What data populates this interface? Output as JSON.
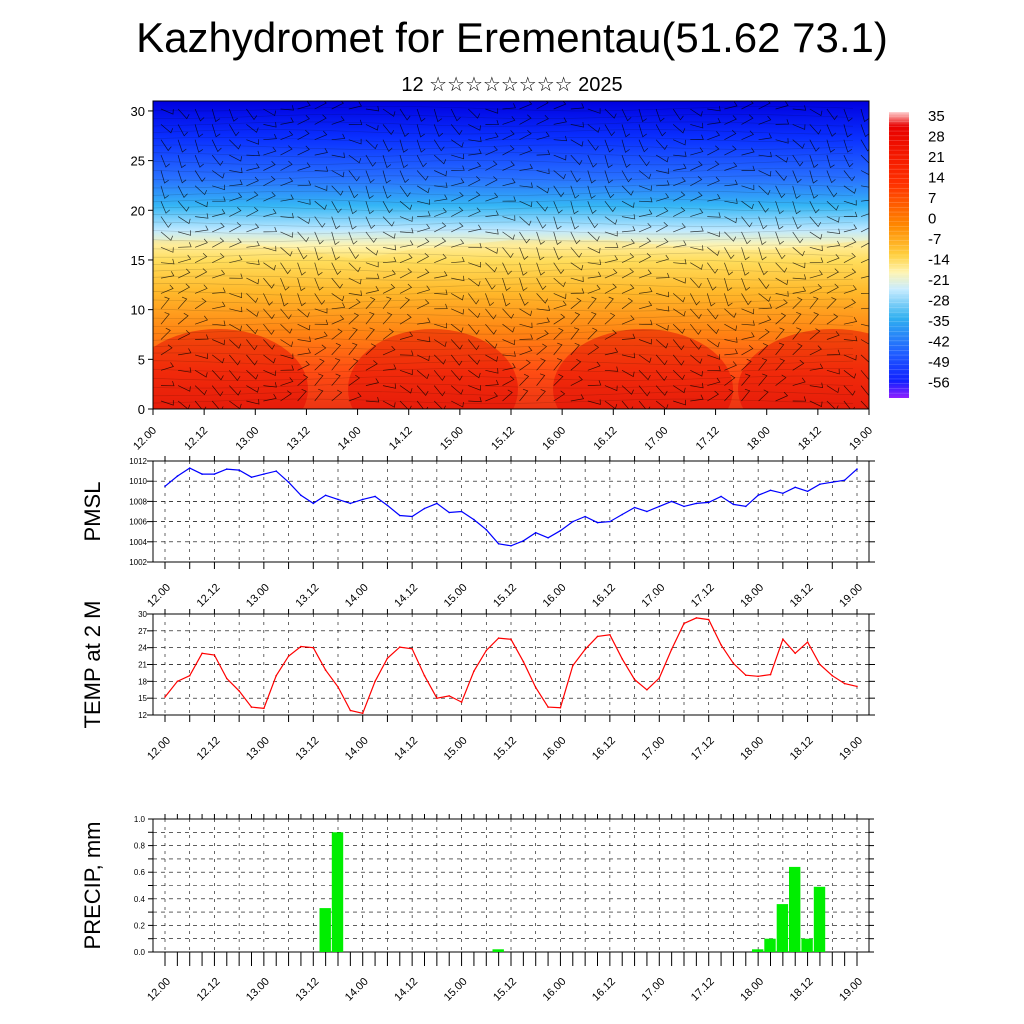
{
  "title": "Kazhydromet for Erementau(51.62 73.1)",
  "subtitle": "12 ☆☆☆☆☆☆☆☆ 2025",
  "colors": {
    "pmsl": "#0000ff",
    "temp": "#ff0000",
    "precip": "#00ee00"
  },
  "chart_data": [
    {
      "type": "heatmap",
      "name": "temperature cross-section with wind barbs",
      "xlabel": "",
      "ylabel": "",
      "ylim": [
        0,
        31
      ],
      "yticks": [
        "0",
        "5",
        "10",
        "15",
        "20",
        "25",
        "30"
      ],
      "xticks": [
        "12.00",
        "12.12",
        "13.00",
        "13.12",
        "14.00",
        "14.12",
        "15.00",
        "15.12",
        "16.00",
        "16.12",
        "17.00",
        "17.12",
        "18.00",
        "18.12",
        "19.00"
      ],
      "colorbar_labels": [
        "35",
        "28",
        "21",
        "14",
        "7",
        "0",
        "-7",
        "-14",
        "-21",
        "-28",
        "-35",
        "-42",
        "-49",
        "-56"
      ],
      "colorbar_range": [
        -60,
        40
      ],
      "warm_layer_top_level": [
        17,
        17,
        16.5,
        16,
        15,
        16,
        16.5,
        17,
        17,
        17,
        16.5,
        16,
        16,
        16.5,
        17
      ]
    },
    {
      "type": "line",
      "ylabel": "PMSL",
      "ylim": [
        1002,
        1012
      ],
      "yticks": [
        "1002",
        "1004",
        "1006",
        "1008",
        "1010",
        "1012"
      ],
      "xticks": [
        "12.00",
        "12.12",
        "13.00",
        "13.12",
        "14.00",
        "14.12",
        "15.00",
        "15.12",
        "16.00",
        "16.12",
        "17.00",
        "17.12",
        "18.00",
        "18.12",
        "19.00"
      ],
      "x_hours": [
        0,
        3,
        6,
        9,
        12,
        15,
        18,
        21,
        24,
        27,
        30,
        33,
        36,
        39,
        42,
        45,
        48,
        51,
        54,
        57,
        60,
        63,
        66,
        69,
        72,
        75,
        78,
        81,
        84,
        87,
        90,
        93,
        96,
        99,
        102,
        105,
        108,
        111,
        114,
        117,
        120,
        123,
        126,
        129,
        132,
        135,
        138,
        141,
        144,
        147,
        150,
        153,
        156,
        159,
        162,
        165,
        168
      ],
      "values": [
        1009.5,
        1010.5,
        1011.3,
        1010.7,
        1010.7,
        1011.2,
        1011.1,
        1010.4,
        1010.7,
        1011.0,
        1009.9,
        1008.6,
        1007.8,
        1008.6,
        1008.2,
        1007.8,
        1008.2,
        1008.5,
        1007.6,
        1006.6,
        1006.5,
        1007.3,
        1007.8,
        1006.9,
        1007.0,
        1006.2,
        1005.2,
        1003.8,
        1003.6,
        1004.1,
        1004.9,
        1004.4,
        1005.1,
        1006.0,
        1006.5,
        1005.9,
        1006.0,
        1006.7,
        1007.4,
        1007.0,
        1007.5,
        1008.0,
        1007.5,
        1007.8,
        1007.9,
        1008.5,
        1007.7,
        1007.5,
        1008.6,
        1009.1,
        1008.8,
        1009.4,
        1009.0,
        1009.7,
        1009.9,
        1010.1,
        1011.2
      ]
    },
    {
      "type": "line",
      "ylabel": "TEMP at 2 M",
      "ylim": [
        12,
        30
      ],
      "yticks": [
        "12",
        "15",
        "18",
        "21",
        "24",
        "27",
        "30"
      ],
      "xticks": [
        "12.00",
        "12.12",
        "13.00",
        "13.12",
        "14.00",
        "14.12",
        "15.00",
        "15.12",
        "16.00",
        "16.12",
        "17.00",
        "17.12",
        "18.00",
        "18.12",
        "19.00"
      ],
      "x_hours": [
        0,
        3,
        6,
        9,
        12,
        15,
        18,
        21,
        24,
        27,
        30,
        33,
        36,
        39,
        42,
        45,
        48,
        51,
        54,
        57,
        60,
        63,
        66,
        69,
        72,
        75,
        78,
        81,
        84,
        87,
        90,
        93,
        96,
        99,
        102,
        105,
        108,
        111,
        114,
        117,
        120,
        123,
        126,
        129,
        132,
        135,
        138,
        141,
        144,
        147,
        150,
        153,
        156,
        159,
        162,
        165,
        168
      ],
      "values": [
        15.2,
        18.0,
        19.0,
        23.0,
        22.7,
        18.5,
        16.3,
        13.4,
        13.2,
        19.0,
        22.5,
        24.2,
        24.0,
        20.0,
        17.0,
        12.8,
        12.3,
        18.0,
        22.1,
        24.1,
        23.8,
        19.0,
        15.0,
        15.4,
        14.3,
        19.8,
        23.5,
        25.7,
        25.5,
        21.5,
        16.9,
        13.4,
        13.3,
        20.8,
        23.7,
        26.0,
        26.3,
        22.0,
        18.3,
        16.5,
        18.6,
        23.7,
        28.3,
        29.3,
        29.0,
        24.5,
        21.2,
        19.1,
        18.9,
        19.2,
        25.5,
        23.0,
        25.0,
        21.0,
        19.0,
        17.6,
        17.1
      ]
    },
    {
      "type": "bar",
      "ylabel": "PRECIP, mm",
      "ylim": [
        0,
        1.0
      ],
      "yticks": [
        "0.0",
        "0.2",
        "0.4",
        "0.6",
        "0.8",
        "1.0"
      ],
      "xticks": [
        "12.00",
        "12.12",
        "13.00",
        "13.12",
        "14.00",
        "14.12",
        "15.00",
        "15.12",
        "16.00",
        "16.12",
        "17.00",
        "17.12",
        "18.00",
        "18.12",
        "19.00"
      ],
      "bar_hours": [
        39,
        42,
        81,
        144,
        147,
        150,
        153,
        156,
        159
      ],
      "values": [
        0.33,
        0.9,
        0.02,
        0.02,
        0.1,
        0.36,
        0.64,
        0.1,
        0.49
      ]
    }
  ]
}
